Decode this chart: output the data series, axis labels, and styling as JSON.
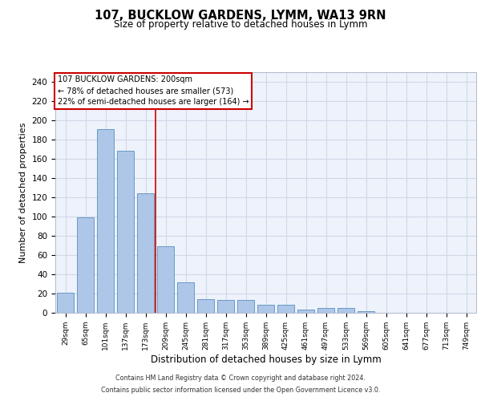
{
  "title1": "107, BUCKLOW GARDENS, LYMM, WA13 9RN",
  "title2": "Size of property relative to detached houses in Lymm",
  "xlabel": "Distribution of detached houses by size in Lymm",
  "ylabel": "Number of detached properties",
  "bar_values": [
    21,
    99,
    191,
    168,
    124,
    69,
    32,
    14,
    13,
    13,
    8,
    8,
    3,
    5,
    5,
    2,
    0,
    0,
    0,
    0,
    0
  ],
  "bar_labels": [
    "29sqm",
    "65sqm",
    "101sqm",
    "137sqm",
    "173sqm",
    "209sqm",
    "245sqm",
    "281sqm",
    "317sqm",
    "353sqm",
    "389sqm",
    "425sqm",
    "461sqm",
    "497sqm",
    "533sqm",
    "569sqm",
    "605sqm",
    "641sqm",
    "677sqm",
    "713sqm",
    "749sqm"
  ],
  "bar_color": "#aec6e8",
  "bar_edge_color": "#5a8fc0",
  "grid_color": "#d0d8e8",
  "bg_color": "#eef2fa",
  "ref_line_color": "#cc0000",
  "annotation_text": "107 BUCKLOW GARDENS: 200sqm\n← 78% of detached houses are smaller (573)\n22% of semi-detached houses are larger (164) →",
  "annotation_box_color": "#cc0000",
  "footer1": "Contains HM Land Registry data © Crown copyright and database right 2024.",
  "footer2": "Contains public sector information licensed under the Open Government Licence v3.0.",
  "ylim": [
    0,
    250
  ],
  "yticks": [
    0,
    20,
    40,
    60,
    80,
    100,
    120,
    140,
    160,
    180,
    200,
    220,
    240
  ]
}
